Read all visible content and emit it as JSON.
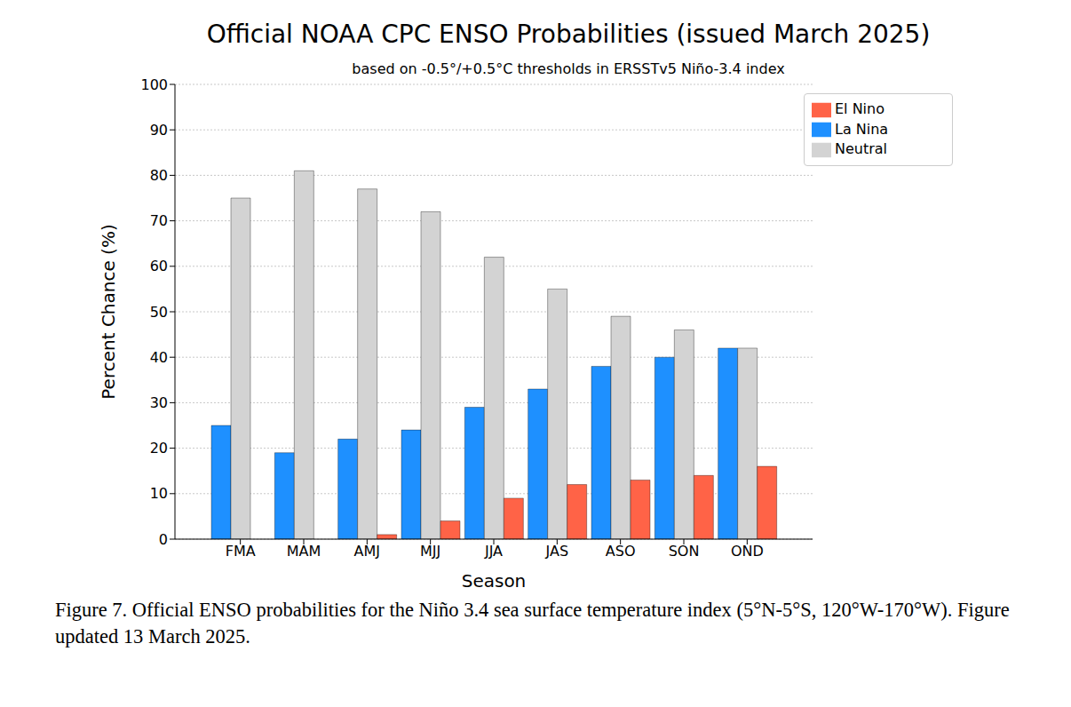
{
  "chart_data": {
    "type": "bar",
    "title": "Official NOAA CPC ENSO Probabilities (issued March 2025)",
    "subtitle": "based on -0.5°/+0.5°C thresholds in ERSSTv5 Niño-3.4 index",
    "x_label": "Season",
    "y_label": "Percent Chance (%)",
    "caption": "Figure 7. Official ENSO probabilities for the Niño 3.4 sea surface temperature index (5°N-5°S, 120°W-170°W). Figure updated 13 March 2025.",
    "categories": [
      "FMA",
      "MAM",
      "AMJ",
      "MJJ",
      "JJA",
      "JAS",
      "ASO",
      "SON",
      "OND"
    ],
    "series": [
      {
        "name": "La Nina",
        "color": "#1e90ff",
        "values": [
          25,
          19,
          22,
          24,
          29,
          33,
          38,
          40,
          42
        ]
      },
      {
        "name": "Neutral",
        "color": "#d3d3d3",
        "values": [
          75,
          81,
          77,
          72,
          62,
          55,
          49,
          46,
          42
        ]
      },
      {
        "name": "El Nino",
        "color": "#ff6347",
        "values": [
          0,
          0,
          1,
          4,
          9,
          12,
          13,
          14,
          16
        ]
      }
    ],
    "ylim": [
      0,
      100
    ],
    "yticks": [
      0,
      10,
      20,
      30,
      40,
      50,
      60,
      70,
      80,
      90,
      100
    ],
    "grid": true,
    "legend": "upper right"
  }
}
